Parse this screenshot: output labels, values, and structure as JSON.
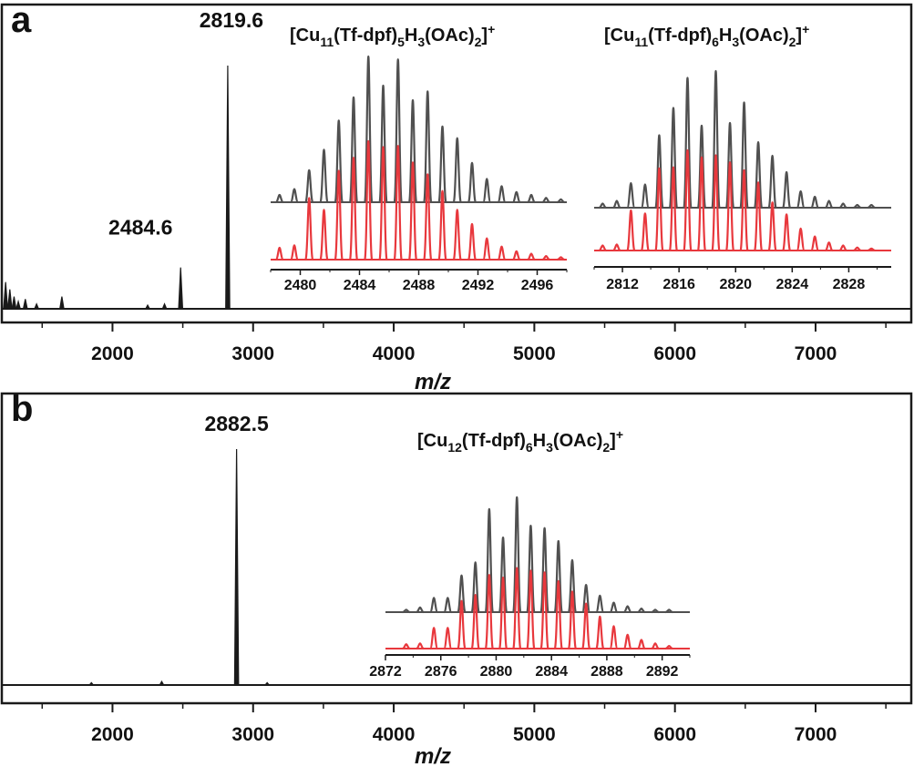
{
  "chart_data": [
    {
      "type": "line",
      "panel_label": "a",
      "xlabel": "m/z",
      "ylabel": "",
      "xlim": [
        1200,
        7700
      ],
      "ylim": [
        0,
        1
      ],
      "xticks": [
        2000,
        3000,
        4000,
        5000,
        6000,
        7000
      ],
      "tick_labels": [
        "2000",
        "3000",
        "4000",
        "5000",
        "6000",
        "7000"
      ],
      "series": [
        {
          "name": "spectrum",
          "color": "#1a1a1a",
          "peaks": [
            [
              1240,
              0.11
            ],
            [
              1270,
              0.08
            ],
            [
              1300,
              0.05
            ],
            [
              1330,
              0.03
            ],
            [
              1380,
              0.04
            ],
            [
              1460,
              0.02
            ],
            [
              1640,
              0.05
            ],
            [
              2250,
              0.015
            ],
            [
              2370,
              0.02
            ],
            [
              2484.6,
              0.17
            ],
            [
              2819.6,
              1.0
            ]
          ]
        }
      ],
      "peak_labels": [
        {
          "x": 2819.6,
          "text": "2819.6"
        },
        {
          "x": 2484.6,
          "text": "2484.6"
        }
      ],
      "insets": [
        {
          "formula": {
            "metal": "Cu",
            "metal_n": "11",
            "ligand": "(Tf-dpf)",
            "ligand_n": "5",
            "h": "H",
            "h_n": "3",
            "acetate": "(OAc)",
            "acetate_n": "2",
            "charge": "+"
          },
          "xlim": [
            2478,
            2498
          ],
          "xticks": [
            2480,
            2484,
            2488,
            2492,
            2496
          ],
          "tick_labels": [
            "2480",
            "2484",
            "2488",
            "2492",
            "2496"
          ],
          "series": [
            {
              "name": "experimental",
              "color": "#505050",
              "peaks": [
                [
                  2478.6,
                  0.05
                ],
                [
                  2479.6,
                  0.09
                ],
                [
                  2480.6,
                  0.22
                ],
                [
                  2481.6,
                  0.36
                ],
                [
                  2482.6,
                  0.56
                ],
                [
                  2483.6,
                  0.72
                ],
                [
                  2484.6,
                  1.0
                ],
                [
                  2485.6,
                  0.8
                ],
                [
                  2486.6,
                  0.98
                ],
                [
                  2487.6,
                  0.7
                ],
                [
                  2488.6,
                  0.76
                ],
                [
                  2489.6,
                  0.52
                ],
                [
                  2490.6,
                  0.44
                ],
                [
                  2491.6,
                  0.27
                ],
                [
                  2492.6,
                  0.16
                ],
                [
                  2493.6,
                  0.11
                ],
                [
                  2494.6,
                  0.07
                ],
                [
                  2495.6,
                  0.05
                ],
                [
                  2496.6,
                  0.03
                ],
                [
                  2497.6,
                  0.02
                ]
              ]
            },
            {
              "name": "simulated",
              "color": "#e8383d",
              "peaks": [
                [
                  2478.6,
                  0.1
                ],
                [
                  2479.6,
                  0.12
                ],
                [
                  2480.6,
                  0.52
                ],
                [
                  2481.6,
                  0.42
                ],
                [
                  2482.6,
                  0.75
                ],
                [
                  2483.6,
                  0.86
                ],
                [
                  2484.6,
                  1.0
                ],
                [
                  2485.6,
                  0.95
                ],
                [
                  2486.6,
                  0.96
                ],
                [
                  2487.6,
                  0.82
                ],
                [
                  2488.6,
                  0.72
                ],
                [
                  2489.6,
                  0.58
                ],
                [
                  2490.6,
                  0.42
                ],
                [
                  2491.6,
                  0.3
                ],
                [
                  2492.6,
                  0.18
                ],
                [
                  2493.6,
                  0.11
                ],
                [
                  2494.6,
                  0.07
                ],
                [
                  2495.6,
                  0.05
                ],
                [
                  2496.6,
                  0.03
                ],
                [
                  2497.6,
                  0.02
                ]
              ]
            }
          ]
        },
        {
          "formula": {
            "metal": "Cu",
            "metal_n": "11",
            "ligand": "(Tf-dpf)",
            "ligand_n": "6",
            "h": "H",
            "h_n": "3",
            "acetate": "(OAc)",
            "acetate_n": "2",
            "charge": "+"
          },
          "xlim": [
            2810,
            2831
          ],
          "xticks": [
            2812,
            2816,
            2820,
            2824,
            2828
          ],
          "tick_labels": [
            "2812",
            "2816",
            "2820",
            "2824",
            "2828"
          ],
          "series": [
            {
              "name": "experimental",
              "color": "#505050",
              "peaks": [
                [
                  2810.6,
                  0.03
                ],
                [
                  2811.6,
                  0.05
                ],
                [
                  2812.6,
                  0.18
                ],
                [
                  2813.6,
                  0.17
                ],
                [
                  2814.6,
                  0.53
                ],
                [
                  2815.6,
                  0.73
                ],
                [
                  2816.6,
                  0.95
                ],
                [
                  2817.6,
                  0.6
                ],
                [
                  2818.6,
                  1.0
                ],
                [
                  2819.6,
                  0.62
                ],
                [
                  2820.6,
                  0.77
                ],
                [
                  2821.6,
                  0.48
                ],
                [
                  2822.6,
                  0.38
                ],
                [
                  2823.6,
                  0.26
                ],
                [
                  2824.6,
                  0.12
                ],
                [
                  2825.6,
                  0.08
                ],
                [
                  2826.6,
                  0.05
                ],
                [
                  2827.6,
                  0.03
                ],
                [
                  2828.6,
                  0.02
                ],
                [
                  2829.6,
                  0.02
                ]
              ]
            },
            {
              "name": "simulated",
              "color": "#e8383d",
              "peaks": [
                [
                  2810.6,
                  0.05
                ],
                [
                  2811.6,
                  0.06
                ],
                [
                  2812.6,
                  0.4
                ],
                [
                  2813.6,
                  0.37
                ],
                [
                  2814.6,
                  0.82
                ],
                [
                  2815.6,
                  0.83
                ],
                [
                  2816.6,
                  1.0
                ],
                [
                  2817.6,
                  0.93
                ],
                [
                  2818.6,
                  0.95
                ],
                [
                  2819.6,
                  0.88
                ],
                [
                  2820.6,
                  0.8
                ],
                [
                  2821.6,
                  0.68
                ],
                [
                  2822.6,
                  0.48
                ],
                [
                  2823.6,
                  0.36
                ],
                [
                  2824.6,
                  0.22
                ],
                [
                  2825.6,
                  0.14
                ],
                [
                  2826.6,
                  0.08
                ],
                [
                  2827.6,
                  0.05
                ],
                [
                  2828.6,
                  0.03
                ],
                [
                  2829.6,
                  0.02
                ]
              ]
            }
          ]
        }
      ]
    },
    {
      "type": "line",
      "panel_label": "b",
      "xlabel": "m/z",
      "ylabel": "",
      "xlim": [
        1200,
        7700
      ],
      "ylim": [
        0,
        1
      ],
      "xticks": [
        2000,
        3000,
        4000,
        5000,
        6000,
        7000
      ],
      "tick_labels": [
        "2000",
        "3000",
        "4000",
        "5000",
        "6000",
        "7000"
      ],
      "series": [
        {
          "name": "spectrum",
          "color": "#1a1a1a",
          "peaks": [
            [
              1850,
              0.01
            ],
            [
              2350,
              0.015
            ],
            [
              2882.5,
              1.0
            ],
            [
              3100,
              0.01
            ]
          ]
        }
      ],
      "peak_labels": [
        {
          "x": 2882.5,
          "text": "2882.5"
        }
      ],
      "insets": [
        {
          "formula": {
            "metal": "Cu",
            "metal_n": "12",
            "ligand": "(Tf-dpf)",
            "ligand_n": "6",
            "h": "H",
            "h_n": "3",
            "acetate": "(OAc)",
            "acetate_n": "2",
            "charge": "+"
          },
          "xlim": [
            2872,
            2894
          ],
          "xticks": [
            2872,
            2876,
            2880,
            2884,
            2888,
            2892
          ],
          "tick_labels": [
            "2872",
            "2876",
            "2880",
            "2884",
            "2888",
            "2892"
          ],
          "series": [
            {
              "name": "experimental",
              "color": "#505050",
              "peaks": [
                [
                  2873.5,
                  0.02
                ],
                [
                  2874.5,
                  0.04
                ],
                [
                  2875.5,
                  0.12
                ],
                [
                  2876.5,
                  0.12
                ],
                [
                  2877.5,
                  0.31
                ],
                [
                  2878.5,
                  0.42
                ],
                [
                  2879.5,
                  0.87
                ],
                [
                  2880.5,
                  0.63
                ],
                [
                  2881.5,
                  0.97
                ],
                [
                  2882.5,
                  0.73
                ],
                [
                  2883.5,
                  0.71
                ],
                [
                  2884.5,
                  0.6
                ],
                [
                  2885.5,
                  0.44
                ],
                [
                  2886.5,
                  0.23
                ],
                [
                  2887.5,
                  0.14
                ],
                [
                  2888.5,
                  0.08
                ],
                [
                  2889.5,
                  0.05
                ],
                [
                  2890.5,
                  0.03
                ],
                [
                  2891.5,
                  0.02
                ],
                [
                  2892.5,
                  0.02
                ]
              ]
            },
            {
              "name": "simulated",
              "color": "#e8383d",
              "peaks": [
                [
                  2873.5,
                  0.05
                ],
                [
                  2874.5,
                  0.06
                ],
                [
                  2875.5,
                  0.24
                ],
                [
                  2876.5,
                  0.24
                ],
                [
                  2877.5,
                  0.55
                ],
                [
                  2878.5,
                  0.62
                ],
                [
                  2879.5,
                  0.85
                ],
                [
                  2880.5,
                  0.82
                ],
                [
                  2881.5,
                  0.93
                ],
                [
                  2882.5,
                  0.9
                ],
                [
                  2883.5,
                  0.88
                ],
                [
                  2884.5,
                  0.78
                ],
                [
                  2885.5,
                  0.66
                ],
                [
                  2886.5,
                  0.52
                ],
                [
                  2887.5,
                  0.37
                ],
                [
                  2888.5,
                  0.26
                ],
                [
                  2889.5,
                  0.16
                ],
                [
                  2890.5,
                  0.1
                ],
                [
                  2891.5,
                  0.06
                ],
                [
                  2892.5,
                  0.03
                ]
              ]
            }
          ]
        }
      ]
    }
  ]
}
